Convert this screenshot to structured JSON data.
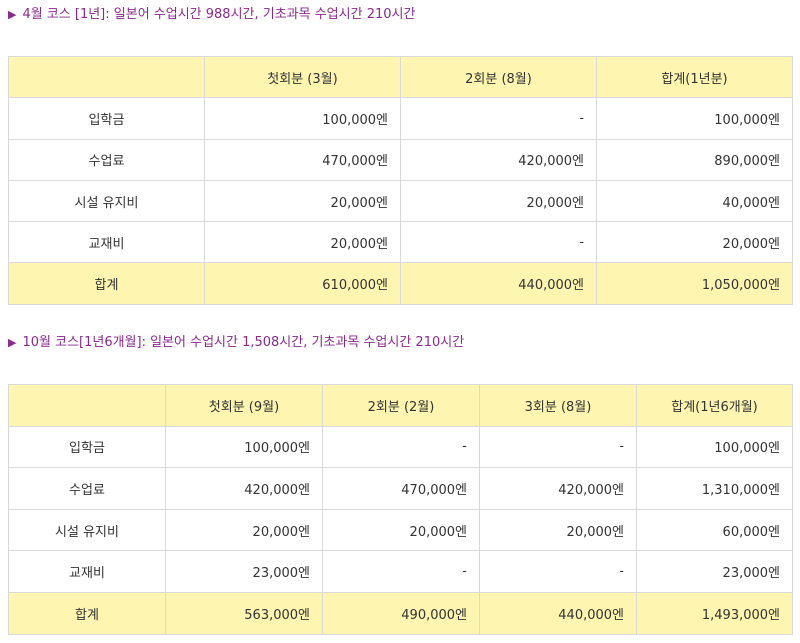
{
  "section1": {
    "title": "4월 코스 [1년]: 일본어 수업시간 988시간, 기초과목 수업시간 210시간",
    "headers": [
      "",
      "첫회분 (3월)",
      "2회분 (8월)",
      "합계(1년분)"
    ],
    "rows": [
      [
        "입학금",
        "100,000엔",
        "-",
        "100,000엔"
      ],
      [
        "수업료",
        "470,000엔",
        "420,000엔",
        "890,000엔"
      ],
      [
        "시설 유지비",
        "20,000엔",
        "20,000엔",
        "40,000엔"
      ],
      [
        "교재비",
        "20,000엔",
        "-",
        "20,000엔"
      ]
    ],
    "total": [
      "합계",
      "610,000엔",
      "440,000엔",
      "1,050,000엔"
    ]
  },
  "section2": {
    "title": "10월 코스[1년6개월]: 일본어 수업시간 1,508시간, 기초과목 수업시간 210시간",
    "headers": [
      "",
      "첫회분 (9월)",
      "2회분 (2월)",
      "3회분 (8월)",
      "합계(1년6개월)"
    ],
    "rows": [
      [
        "입학금",
        "100,000엔",
        "-",
        "-",
        "100,000엔"
      ],
      [
        "수업료",
        "420,000엔",
        "470,000엔",
        "420,000엔",
        "1,310,000엔"
      ],
      [
        "시설 유지비",
        "20,000엔",
        "20,000엔",
        "20,000엔",
        "60,000엔"
      ],
      [
        "교재비",
        "23,000엔",
        "-",
        "-",
        "23,000엔"
      ]
    ],
    "total": [
      "합계",
      "563,000엔",
      "490,000엔",
      "440,000엔",
      "1,493,000엔"
    ]
  }
}
